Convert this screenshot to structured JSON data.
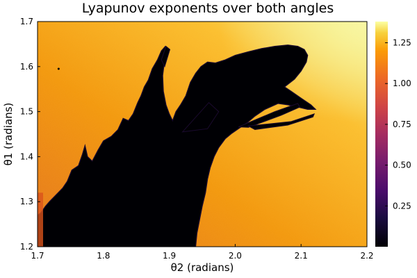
{
  "chart_data": {
    "type": "heatmap",
    "title": "Lyapunov exponents over both angles",
    "xlabel": "θ2 (radians)",
    "ylabel": "θ1 (radians)",
    "xlim": [
      1.7,
      2.2
    ],
    "ylim": [
      1.2,
      1.7
    ],
    "x_ticks": [
      1.7,
      1.8,
      1.9,
      2.0,
      2.1,
      2.2
    ],
    "x_tick_labels": [
      "1.7",
      "1.8",
      "1.9",
      "2.0",
      "2.1",
      "2.2"
    ],
    "y_ticks": [
      1.2,
      1.3,
      1.4,
      1.5,
      1.6,
      1.7
    ],
    "y_tick_labels": [
      "1.2",
      "1.3",
      "1.4",
      "1.5",
      "1.6",
      "1.7"
    ],
    "colorbar": {
      "colormap": "inferno",
      "range": [
        0.0,
        1.38
      ],
      "ticks": [
        0.25,
        0.5,
        0.75,
        1.0,
        1.25
      ],
      "tick_labels": [
        "0.25",
        "0.50",
        "0.75",
        "1.00",
        "1.25"
      ]
    },
    "regions": [
      {
        "description": "near-zero exponent (black) region spanning lower-left to upper-centre",
        "value": 0.0
      },
      {
        "description": "orange background",
        "value": 1.1
      },
      {
        "description": "light yellow upper-right corner",
        "value": 1.3
      }
    ],
    "grid": false
  },
  "colors": {
    "background": "#ffffff",
    "axis": "#000000",
    "low": "#000004",
    "high": "#fcffa4"
  }
}
